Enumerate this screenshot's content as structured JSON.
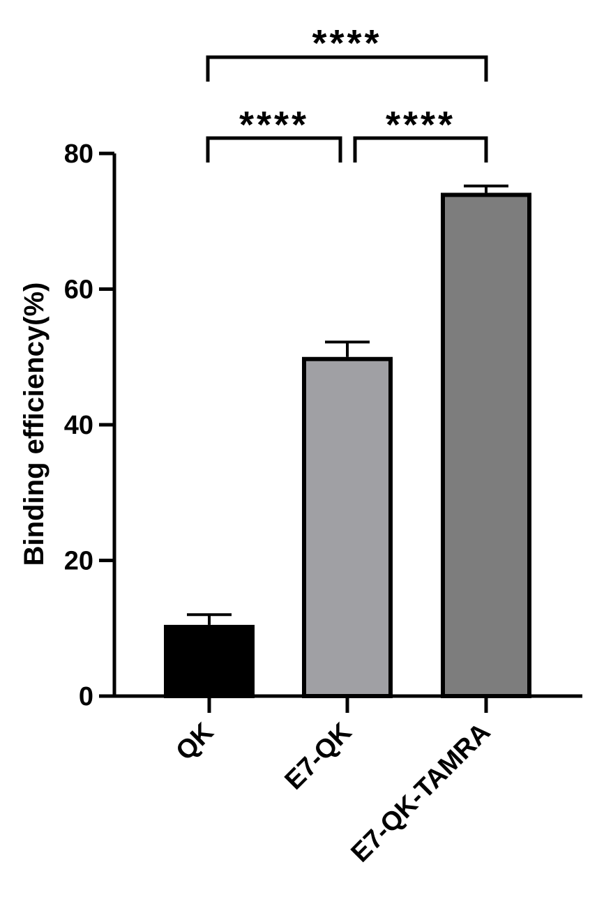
{
  "chart_data": {
    "type": "bar",
    "categories": [
      "QK",
      "E7-QK",
      "E7-QK-TAMRA"
    ],
    "values": [
      10.5,
      50.0,
      74.2
    ],
    "errors": [
      1.5,
      2.2,
      1.0
    ],
    "colors": [
      "#000000",
      "#a0a0a4",
      "#7d7d7d"
    ],
    "ylabel": "Binding efficiency(%)",
    "xlabel": "",
    "ylim": [
      0,
      80
    ],
    "yticks": [
      0,
      20,
      40,
      60,
      80
    ],
    "grid": false,
    "comparisons": [
      {
        "from": 0,
        "to": 1,
        "label": "****"
      },
      {
        "from": 1,
        "to": 2,
        "label": "****"
      },
      {
        "from": 0,
        "to": 2,
        "label": "****"
      }
    ]
  }
}
